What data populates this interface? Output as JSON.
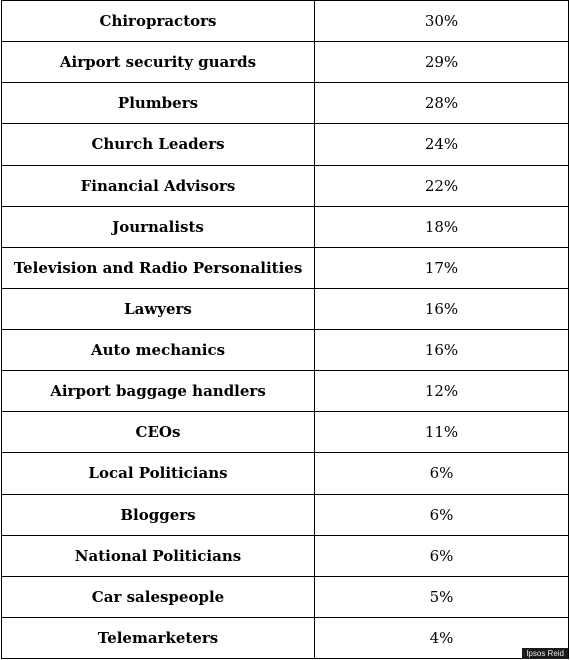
{
  "chart_data": {
    "type": "table",
    "rows": [
      {
        "label": "Chiropractors",
        "value": "30%"
      },
      {
        "label": "Airport security guards",
        "value": "29%"
      },
      {
        "label": "Plumbers",
        "value": "28%"
      },
      {
        "label": "Church Leaders",
        "value": "24%"
      },
      {
        "label": "Financial Advisors",
        "value": "22%"
      },
      {
        "label": "Journalists",
        "value": "18%"
      },
      {
        "label": "Television and Radio Personalities",
        "value": "17%"
      },
      {
        "label": "Lawyers",
        "value": "16%"
      },
      {
        "label": "Auto mechanics",
        "value": "16%"
      },
      {
        "label": "Airport baggage handlers",
        "value": "12%"
      },
      {
        "label": "CEOs",
        "value": "11%"
      },
      {
        "label": "Local Politicians",
        "value": "6%"
      },
      {
        "label": "Bloggers",
        "value": "6%"
      },
      {
        "label": "National Politicians",
        "value": "6%"
      },
      {
        "label": "Car salespeople",
        "value": "5%"
      },
      {
        "label": "Telemarketers",
        "value": "4%"
      }
    ]
  },
  "credit": "Ipsos Reid"
}
